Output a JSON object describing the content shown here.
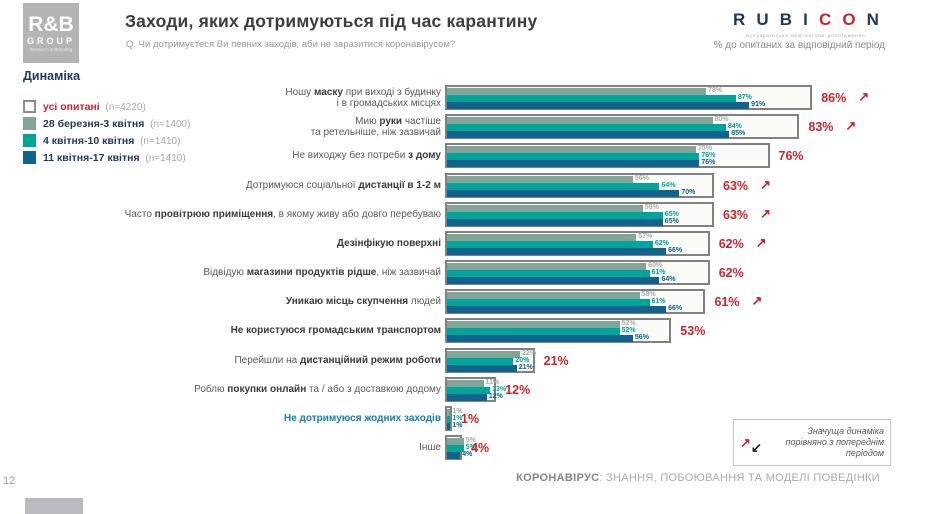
{
  "header": {
    "logo": {
      "line1": "R&B",
      "line2": "GROUP",
      "line3": "Research & Branding"
    },
    "title": "Заходи, яких дотримуються під час карантину",
    "subtitle": "Q. Чи дотримуєтеся Ви певних заходів, аби не заразитися коронавірусом?",
    "unit_note": "% до опитаних за відповідний період",
    "rubicon": {
      "text": "RUBICON",
      "red_indices": [
        4,
        5
      ],
      "tagline": "всеукраїнське рейтингове дослідження"
    }
  },
  "legend": {
    "title": "Динаміка",
    "items": [
      {
        "label": "усі опитані",
        "n": "(n=4220)",
        "color": "#ffffff",
        "border": "#8c8c8c",
        "label_color": "#c9252b"
      },
      {
        "label": "28 березня-3 квітня",
        "n": "(n=1400)",
        "color": "#84a49a"
      },
      {
        "label": "4 квітня-10 квітня",
        "n": "(n=1410)",
        "color": "#00a59a"
      },
      {
        "label": "11 квітня-17 квітня",
        "n": "(n=1410)",
        "color": "#0f638e"
      }
    ]
  },
  "chart_data": {
    "type": "bar",
    "orientation": "horizontal",
    "unit": "%",
    "xlim": [
      0,
      100
    ],
    "title": "Заходи, яких дотримуються під час карантину",
    "series_names": [
      "28 березня-3 квітня (n=1400)",
      "4 квітня-10 квітня (n=1410)",
      "11 квітня-17 квітня (n=1410)"
    ],
    "totals_name": "усі опитані (n=4220)",
    "series_colors": [
      "#84a49a",
      "#00a59a",
      "#0f638e"
    ],
    "value_label_colors": [
      "#a4b0ab",
      "#00a59a",
      "#0f638e"
    ],
    "total_color": "#c9252b",
    "rows": [
      {
        "lines": [
          [
            {
              "t": "Ношу ",
              "b": false
            },
            {
              "t": "маску",
              "b": true
            },
            {
              "t": " при виході з будинку",
              "b": false
            }
          ],
          [
            {
              "t": "і в громадських місцях",
              "b": false
            }
          ]
        ],
        "values": [
          78,
          87,
          91
        ],
        "total": 86,
        "arrow": true
      },
      {
        "lines": [
          [
            {
              "t": "Мию ",
              "b": false
            },
            {
              "t": "руки",
              "b": true
            },
            {
              "t": " частіше",
              "b": false
            }
          ],
          [
            {
              "t": "та ретельніше, ніж зазвичай",
              "b": false
            }
          ]
        ],
        "values": [
          80,
          84,
          85
        ],
        "total": 83,
        "arrow": true
      },
      {
        "lines": [
          [
            {
              "t": "Не виходжу без потреби ",
              "b": false
            },
            {
              "t": "з дому",
              "b": true
            }
          ]
        ],
        "values": [
          75,
          76,
          76
        ],
        "total": 76,
        "arrow": false
      },
      {
        "lines": [
          [
            {
              "t": "Дотримуюся соціальної ",
              "b": false
            },
            {
              "t": "дистанції в 1-2 м",
              "b": true
            }
          ]
        ],
        "values": [
          56,
          64,
          70
        ],
        "total": 63,
        "arrow": true
      },
      {
        "lines": [
          [
            {
              "t": "Часто ",
              "b": false
            },
            {
              "t": "провітрюю приміщення",
              "b": true
            },
            {
              "t": ", в якому живу або довго перебуваю",
              "b": false
            }
          ]
        ],
        "values": [
          59,
          65,
          65
        ],
        "total": 63,
        "arrow": true
      },
      {
        "lines": [
          [
            {
              "t": "Дезінфікую поверхні",
              "b": true
            }
          ]
        ],
        "values": [
          57,
          62,
          66
        ],
        "total": 62,
        "arrow": true
      },
      {
        "lines": [
          [
            {
              "t": "Відвідую ",
              "b": false
            },
            {
              "t": "магазини продуктів рідше",
              "b": true
            },
            {
              "t": ", ніж зазвичай",
              "b": false
            }
          ]
        ],
        "values": [
          60,
          61,
          64
        ],
        "total": 62,
        "arrow": false
      },
      {
        "lines": [
          [
            {
              "t": "Уникаю місць скупчення",
              "b": true
            },
            {
              "t": " людей",
              "b": false
            }
          ]
        ],
        "values": [
          58,
          61,
          66
        ],
        "total": 61,
        "arrow": true
      },
      {
        "lines": [
          [
            {
              "t": "Не користуюся громадським транспортом",
              "b": true
            }
          ]
        ],
        "values": [
          52,
          52,
          56
        ],
        "total": 53,
        "arrow": false
      },
      {
        "lines": [
          [
            {
              "t": "Перейшли на ",
              "b": false
            },
            {
              "t": "дистанційний режим роботи",
              "b": true
            }
          ]
        ],
        "values": [
          22,
          20,
          21
        ],
        "total": 21,
        "arrow": false
      },
      {
        "lines": [
          [
            {
              "t": "Роблю ",
              "b": false
            },
            {
              "t": "покупки онлайн",
              "b": true
            },
            {
              "t": " та / або з доставкою додому",
              "b": false
            }
          ]
        ],
        "values": [
          11,
          13,
          12
        ],
        "total": 12,
        "arrow": false
      },
      {
        "lines": [
          [
            {
              "t": "Не дотримуюся жодних заходів",
              "b": true
            }
          ]
        ],
        "label_color": "#1283ab",
        "values": [
          1,
          1,
          1
        ],
        "total": 1,
        "arrow": false
      },
      {
        "lines": [
          [
            {
              "t": "Інше",
              "b": false
            }
          ]
        ],
        "values": [
          5,
          5,
          4
        ],
        "total": 4,
        "arrow": false
      }
    ]
  },
  "annotation": {
    "arrow_up": "↗",
    "arrow_down": "↙",
    "text": "Значуща динаміка порівняно з попереднім періодом"
  },
  "footer": {
    "page": "12",
    "title_bold": "КОРОНАВІРУС",
    "title_rest": ": ЗНАННЯ, ПОБОЮВАННЯ ТА МОДЕЛІ ПОВЕДІНКИ"
  }
}
